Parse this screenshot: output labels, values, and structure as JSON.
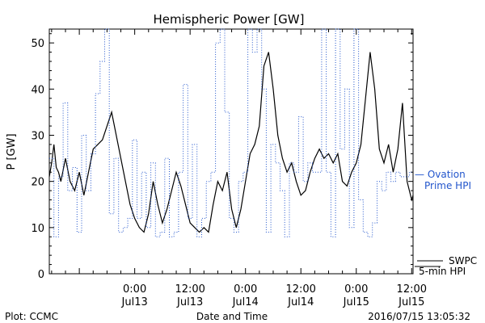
{
  "chart_data": {
    "type": "line",
    "title": "Hemispheric Power [GW]",
    "ylabel": "P [GW]",
    "xlabel": "Date and Time",
    "ylim": [
      0,
      53
    ],
    "yticks": [
      0,
      10,
      20,
      30,
      40,
      50
    ],
    "xlim": [
      -18.5,
      60.3
    ],
    "xticks": [
      {
        "x": 0,
        "time": "0:00",
        "date": "Jul13"
      },
      {
        "x": 12,
        "time": "12:00",
        "date": "Jul13"
      },
      {
        "x": 24,
        "time": "0:00",
        "date": "Jul14"
      },
      {
        "x": 36,
        "time": "12:00",
        "date": "Jul14"
      },
      {
        "x": 48,
        "time": "0:00",
        "date": "Jul15"
      },
      {
        "x": 60,
        "time": "12:00",
        "date": "Jul15"
      }
    ],
    "series": [
      {
        "name": "SWPC 5-min HPI",
        "style": "solid",
        "color": "#000000",
        "x": [
          -18.5,
          -18,
          -17.5,
          -17,
          -16.5,
          -16,
          -15,
          -14,
          -13,
          -12,
          -11,
          -10,
          -9,
          -8,
          -7,
          -6,
          -5,
          -4,
          -3,
          -2,
          -1,
          0,
          1,
          2,
          3,
          4,
          5,
          6,
          7,
          8,
          9,
          10,
          11,
          12,
          13,
          14,
          15,
          16,
          17,
          18,
          19,
          20,
          21,
          22,
          23,
          24,
          25,
          26,
          27,
          28,
          29,
          30,
          31,
          32,
          33,
          34,
          35,
          36,
          37,
          38,
          39,
          40,
          41,
          42,
          43,
          44,
          45,
          46,
          47,
          48,
          49,
          50,
          51,
          52,
          53,
          54,
          55,
          56,
          57,
          58,
          59,
          60,
          60.3
        ],
        "values": [
          21,
          24,
          28,
          23,
          22,
          20,
          25,
          20,
          18,
          22,
          17,
          22,
          27,
          28,
          29,
          32,
          35,
          30,
          25,
          20,
          15,
          12,
          10,
          9,
          13,
          20,
          15,
          11,
          14,
          18,
          22,
          19,
          15,
          11,
          10,
          9,
          10,
          9,
          15,
          20,
          18,
          22,
          14,
          10,
          14,
          20,
          26,
          28,
          32,
          45,
          48,
          40,
          30,
          25,
          22,
          24,
          20,
          17,
          18,
          22,
          25,
          27,
          25,
          26,
          24,
          26,
          20,
          19,
          22,
          24,
          28,
          38,
          48,
          40,
          27,
          24,
          28,
          22,
          27,
          37,
          20,
          16,
          17
        ]
      },
      {
        "name": "Ovation Prime HPI",
        "style": "dotted",
        "color": "#2255cc",
        "x": [
          -18.5,
          -17.5,
          -16.5,
          -15.5,
          -14.5,
          -13.5,
          -12.5,
          -11.5,
          -10.5,
          -9.5,
          -8.5,
          -7.5,
          -6.5,
          -5.5,
          -4.5,
          -3.5,
          -2.5,
          -1.5,
          -0.5,
          0.5,
          1.5,
          2.5,
          3.5,
          4.5,
          5.5,
          6.5,
          7.5,
          8.5,
          9.5,
          10.5,
          11.5,
          12.5,
          13.5,
          14.5,
          15.5,
          16.5,
          17.5,
          18.5,
          19.5,
          20.5,
          21.5,
          22.5,
          23.5,
          24.5,
          25.5,
          26.5,
          27.5,
          28.5,
          29.5,
          30.5,
          31.5,
          32.5,
          33.5,
          34.5,
          35.5,
          36.5,
          37.5,
          38.5,
          39.5,
          40.5,
          41.5,
          42.5,
          43.5,
          44.5,
          45.5,
          46.5,
          47.5,
          48.5,
          49.5,
          50.5,
          51.5,
          52.5,
          53.5,
          54.5,
          55.5,
          56.5,
          57.5,
          58.5,
          59.5,
          60.3
        ],
        "values": [
          25,
          8,
          21,
          37,
          18,
          23,
          9,
          30,
          18,
          26,
          39,
          46,
          53,
          13,
          25,
          9,
          10,
          12,
          29,
          12,
          22,
          10,
          24,
          8,
          9,
          25,
          8,
          9,
          22,
          41,
          12,
          28,
          8,
          12,
          20,
          22,
          50,
          53,
          35,
          12,
          9,
          20,
          22,
          53,
          48,
          53,
          40,
          9,
          28,
          24,
          18,
          8,
          24,
          22,
          34,
          20,
          24,
          22,
          22,
          53,
          22,
          8,
          53,
          27,
          40,
          10,
          53,
          16,
          9,
          8,
          11,
          20,
          18,
          22,
          20,
          22,
          21,
          21,
          22,
          22
        ]
      }
    ],
    "legend": [
      {
        "line1": "— Ovation",
        "line2": "Prime HPI"
      },
      {
        "line1": "SWPC",
        "line2": "5-min HPI"
      }
    ]
  },
  "footer": {
    "left": "Plot: CCMC",
    "center": "Date and Time",
    "right": "2016/07/15 13:05:32"
  }
}
